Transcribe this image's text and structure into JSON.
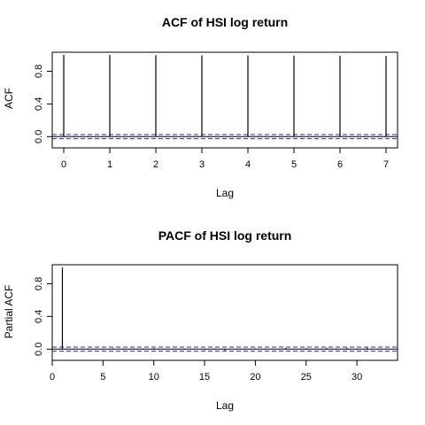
{
  "chart_data": [
    {
      "type": "bar",
      "title": "ACF of HSI log return",
      "xlabel": "Lag",
      "ylabel": "ACF",
      "xlim": [
        -0.25,
        7.25
      ],
      "ylim": [
        -0.04,
        1.0
      ],
      "xticks": [
        0,
        1,
        2,
        3,
        4,
        5,
        6,
        7
      ],
      "yticks": [
        0.0,
        0.4,
        0.8
      ],
      "ytick_labels": [
        "0.0",
        "0.4",
        "0.8"
      ],
      "x": [
        0,
        1,
        2,
        3,
        4,
        5,
        6,
        7
      ],
      "values": [
        1.0,
        0.999,
        0.997,
        0.995,
        0.993,
        0.991,
        0.988,
        0.986
      ],
      "conf_band": 0.025,
      "grid": false
    },
    {
      "type": "bar",
      "title": "PACF of HSI log return",
      "xlabel": "Lag",
      "ylabel": "Partial ACF",
      "xlim": [
        0,
        34
      ],
      "ylim": [
        -0.04,
        1.0
      ],
      "xticks": [
        0,
        5,
        10,
        15,
        20,
        25,
        30
      ],
      "yticks": [
        0.0,
        0.4,
        0.8
      ],
      "ytick_labels": [
        "0.0",
        "0.4",
        "0.8"
      ],
      "x": [
        1,
        2,
        3,
        4,
        5,
        6,
        7,
        8,
        9,
        10,
        11,
        12,
        13,
        14,
        15,
        16,
        17,
        18,
        19,
        20,
        21,
        22,
        23,
        24,
        25,
        26,
        27,
        28,
        29,
        30,
        31,
        32,
        33
      ],
      "values": [
        0.999,
        0.005,
        -0.004,
        0.006,
        -0.005,
        0.01,
        -0.006,
        0.008,
        -0.007,
        0.012,
        -0.003,
        0.004,
        -0.008,
        0.006,
        -0.01,
        0.007,
        -0.016,
        0.005,
        -0.006,
        0.009,
        -0.005,
        0.006,
        0.014,
        -0.004,
        0.012,
        0.008,
        0.016,
        -0.006,
        0.013,
        0.005,
        0.016,
        -0.004,
        0.007
      ],
      "conf_band": 0.025,
      "grid": false
    }
  ]
}
